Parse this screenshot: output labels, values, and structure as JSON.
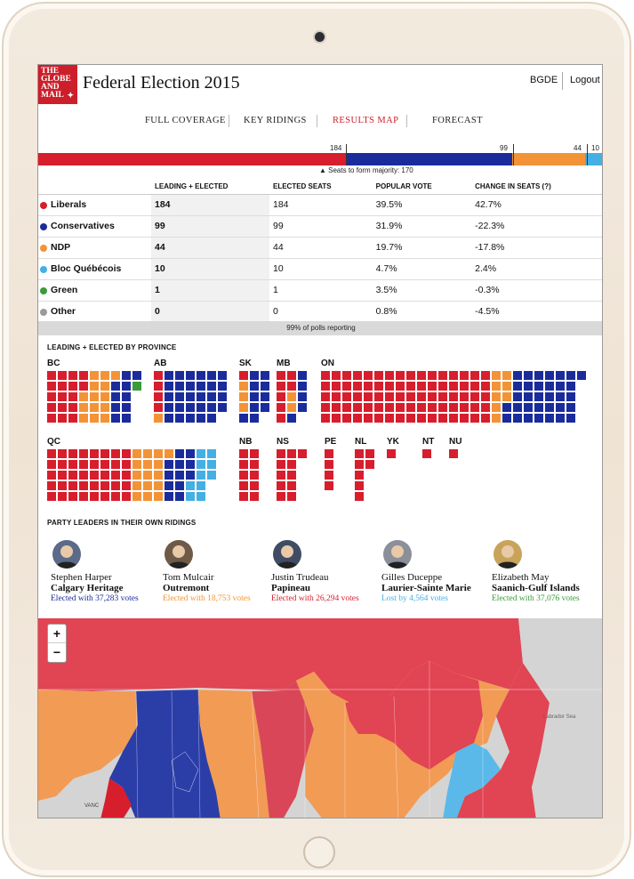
{
  "app": {
    "logo_lines": [
      "THE",
      "GLOBE",
      "AND",
      "MAIL"
    ],
    "title": "Federal Election 2015",
    "user": "BGDE",
    "logout": "Logout"
  },
  "nav": [
    "FULL COVERAGE",
    "KEY RIDINGS",
    "RESULTS MAP",
    "FORECAST"
  ],
  "nav_active": "RESULTS MAP",
  "seat_bar": {
    "segments": [
      {
        "party": "Liberals",
        "seats": 184,
        "color": "#d71e2d"
      },
      {
        "party": "Conservatives",
        "seats": 99,
        "color": "#1a2c9c"
      },
      {
        "party": "NDP",
        "seats": 44,
        "color": "#f39338"
      },
      {
        "party": "Bloc",
        "seats": 10,
        "color": "#45afe4"
      },
      {
        "party": "Green",
        "seats": 1,
        "color": "#3a9b3a"
      }
    ],
    "labels": [
      "184",
      "99",
      "44",
      "10"
    ],
    "majority_text": "▲ Seats to form majority: 170",
    "majority": 170,
    "total": 338
  },
  "table": {
    "headers": [
      "",
      "LEADING + ELECTED",
      "ELECTED SEATS",
      "POPULAR VOTE",
      "CHANGE IN SEATS (?)"
    ],
    "rows": [
      {
        "party": "Liberals",
        "color": "#d71e2d",
        "leading": "184",
        "elected": "184",
        "vote": "39.5%",
        "change": "42.7%"
      },
      {
        "party": "Conservatives",
        "color": "#1a2c9c",
        "leading": "99",
        "elected": "99",
        "vote": "31.9%",
        "change": "-22.3%"
      },
      {
        "party": "NDP",
        "color": "#f39338",
        "leading": "44",
        "elected": "44",
        "vote": "19.7%",
        "change": "-17.8%"
      },
      {
        "party": "Bloc Québécois",
        "color": "#45afe4",
        "leading": "10",
        "elected": "10",
        "vote": "4.7%",
        "change": "2.4%"
      },
      {
        "party": "Green",
        "color": "#3a9b3a",
        "leading": "1",
        "elected": "1",
        "vote": "3.5%",
        "change": "-0.3%"
      },
      {
        "party": "Other",
        "color": "#9a9a9a",
        "leading": "0",
        "elected": "0",
        "vote": "0.8%",
        "change": "-4.5%"
      }
    ],
    "polls": "99% of polls reporting"
  },
  "province_heading": "LEADING + ELECTED BY PROVINCE",
  "provinces": [
    {
      "name": "BC",
      "cols": 9,
      "rows": 5,
      "L": 17,
      "C": 10,
      "N": 14,
      "B": 0,
      "G": 1
    },
    {
      "name": "AB",
      "cols": 7,
      "rows": 5,
      "L": 4,
      "C": 29,
      "N": 1,
      "B": 0,
      "G": 0
    },
    {
      "name": "SK",
      "cols": 3,
      "rows": 5,
      "L": 1,
      "C": 10,
      "N": 3,
      "B": 0,
      "G": 0
    },
    {
      "name": "MB",
      "cols": 3,
      "rows": 5,
      "L": 7,
      "C": 5,
      "N": 2,
      "B": 0,
      "G": 0
    },
    {
      "name": "ON",
      "cols": 25,
      "rows": 5,
      "L": 80,
      "C": 33,
      "N": 8,
      "B": 0,
      "G": 0
    },
    {
      "name": "QC",
      "cols": 16,
      "rows": 5,
      "L": 40,
      "C": 12,
      "N": 16,
      "B": 10,
      "G": 0
    },
    {
      "name": "NB",
      "cols": 2,
      "rows": 5,
      "L": 10,
      "C": 0,
      "N": 0,
      "B": 0,
      "G": 0
    },
    {
      "name": "NS",
      "cols": 3,
      "rows": 5,
      "L": 11,
      "C": 0,
      "N": 0,
      "B": 0,
      "G": 0
    },
    {
      "name": "PE",
      "cols": 1,
      "rows": 4,
      "L": 4,
      "C": 0,
      "N": 0,
      "B": 0,
      "G": 0
    },
    {
      "name": "NL",
      "cols": 2,
      "rows": 5,
      "L": 7,
      "C": 0,
      "N": 0,
      "B": 0,
      "G": 0
    },
    {
      "name": "YK",
      "cols": 1,
      "rows": 1,
      "L": 1,
      "C": 0,
      "N": 0,
      "B": 0,
      "G": 0
    },
    {
      "name": "NT",
      "cols": 1,
      "rows": 1,
      "L": 1,
      "C": 0,
      "N": 0,
      "B": 0,
      "G": 0
    },
    {
      "name": "NU",
      "cols": 1,
      "rows": 1,
      "L": 1,
      "C": 0,
      "N": 0,
      "B": 0,
      "G": 0
    }
  ],
  "leaders_heading": "PARTY LEADERS IN THEIR OWN RIDINGS",
  "leaders": [
    {
      "name": "Stephen Harper",
      "riding": "Calgary Heritage",
      "result": "Elected with 37,283 votes",
      "color": "#1a2c9c"
    },
    {
      "name": "Tom Mulcair",
      "riding": "Outremont",
      "result": "Elected with 18,753 votes",
      "color": "#f39338"
    },
    {
      "name": "Justin Trudeau",
      "riding": "Papineau",
      "result": "Elected with 26,294 votes",
      "color": "#d71e2d"
    },
    {
      "name": "Gilles Duceppe",
      "riding": "Laurier-Sainte Marie",
      "result": "Lost by 4,564 votes",
      "color": "#45afe4"
    },
    {
      "name": "Elizabeth May",
      "riding": "Saanich-Gulf Islands",
      "result": "Elected with 37,076 votes",
      "color": "#3a9b3a"
    }
  ],
  "map": {
    "zoom_in": "+",
    "zoom_out": "−",
    "sea_label": "Labrador Sea",
    "city_label": "VANC"
  }
}
